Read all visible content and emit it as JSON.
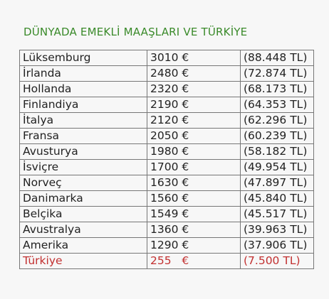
{
  "header": {
    "title": "DÜNYADA EMEKLİ MAAŞLARI VE TÜRKİYE"
  },
  "table": {
    "rows": [
      [
        "Lüksemburg",
        "3010 €",
        "(88.448 TL)"
      ],
      [
        "İrlanda",
        "2480 €",
        "(72.874 TL)"
      ],
      [
        "Hollanda",
        "2320 €",
        "(68.173 TL)"
      ],
      [
        "Finlandiya",
        "2190 €",
        "(64.353 TL)"
      ],
      [
        "İtalya",
        "2120 €",
        "(62.296 TL)"
      ],
      [
        "Fransa",
        "2050 €",
        "(60.239 TL)"
      ],
      [
        "Avusturya",
        "1980 €",
        "(58.182 TL)"
      ],
      [
        "İsviçre",
        "1700 €",
        "(49.954 TL)"
      ],
      [
        "Norveç",
        "1630 €",
        "(47.897 TL)"
      ],
      [
        "Danimarka",
        "1560 €",
        "(45.840 TL)"
      ],
      [
        "Belçika",
        "1549 €",
        "(45.517 TL)"
      ],
      [
        "Avustralya",
        "1360 €",
        "(39.963 TL)"
      ],
      [
        "Amerika",
        "1290 €",
        "(37.906 TL)"
      ],
      [
        "Türkiye",
        "255   €",
        "(7.500 TL)"
      ]
    ]
  }
}
